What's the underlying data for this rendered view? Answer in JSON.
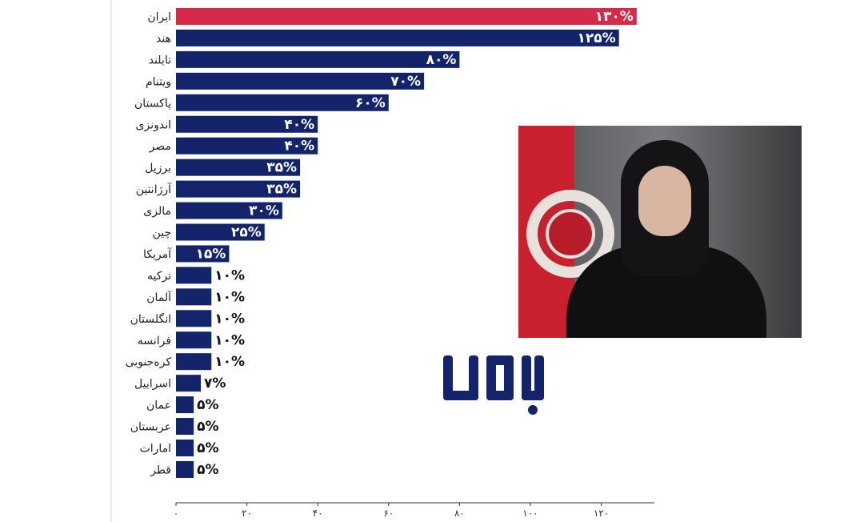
{
  "chart_data": {
    "type": "bar",
    "orientation": "horizontal",
    "categories": [
      "ایران",
      "هند",
      "تایلند",
      "ویتنام",
      "پاکستان",
      "اندونزی",
      "مصر",
      "برزیل",
      "آرژانتین",
      "مالزی",
      "چین",
      "آمریکا",
      "ترکیه",
      "آلمان",
      "انگلستان",
      "فرانسه",
      "کره‌جنوبی",
      "اسراییل",
      "عمان",
      "عربستان",
      "امارات",
      "قطر"
    ],
    "values": [
      130,
      125,
      80,
      70,
      60,
      40,
      40,
      35,
      35,
      30,
      25,
      15,
      10,
      10,
      10,
      10,
      10,
      7,
      5,
      5,
      5,
      5
    ],
    "value_labels": [
      "۱۳۰%",
      "۱۲۵%",
      "۸۰%",
      "۷۰%",
      "۶۰%",
      "۴۰%",
      "۴۰%",
      "۳۵%",
      "۳۵%",
      "۳۰%",
      "۲۵%",
      "۱۵%",
      "۱۰%",
      "۱۰%",
      "۱۰%",
      "۱۰%",
      "۱۰%",
      "۷%",
      "۵%",
      "۵%",
      "۵%",
      "۵%"
    ],
    "xlim": [
      0,
      135
    ],
    "x_ticks": [
      0,
      20,
      40,
      60,
      80,
      100,
      120
    ],
    "x_tick_labels": [
      "۰",
      "۲۰",
      "۴۰",
      "۶۰",
      "۸۰",
      "۱۰۰",
      "۱۲۰"
    ],
    "grid": false,
    "highlight_color": "#d72a4b",
    "bar_color": "#13246a",
    "title": "",
    "xlabel": "",
    "ylabel": ""
  },
  "photo": {
    "icon": "portrait-photo"
  },
  "logo": {
    "icon": "bamdad-logo",
    "text": "بامداد",
    "color": "#13246a"
  }
}
